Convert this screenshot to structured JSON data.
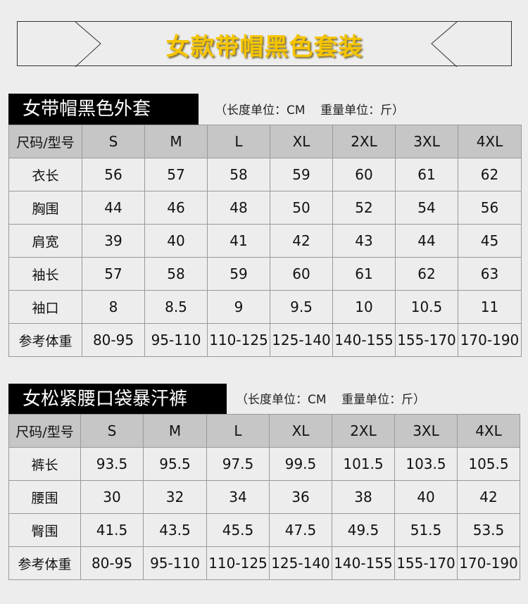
{
  "banner": {
    "title": "女款带帽黑色套装"
  },
  "sections": [
    {
      "title": "女带帽黑色外套",
      "units": "（长度单位：CM    重量单位：斤）",
      "header": [
        "尺码/型号",
        "S",
        "M",
        "L",
        "XL",
        "2XL",
        "3XL",
        "4XL"
      ],
      "rows": [
        [
          "衣长",
          "56",
          "57",
          "58",
          "59",
          "60",
          "61",
          "62"
        ],
        [
          "胸围",
          "44",
          "46",
          "48",
          "50",
          "52",
          "54",
          "56"
        ],
        [
          "肩宽",
          "39",
          "40",
          "41",
          "42",
          "43",
          "44",
          "45"
        ],
        [
          "袖长",
          "57",
          "58",
          "59",
          "60",
          "61",
          "62",
          "63"
        ],
        [
          "袖口",
          "8",
          "8.5",
          "9",
          "9.5",
          "10",
          "10.5",
          "11"
        ],
        [
          "参考体重",
          "80-95",
          "95-110",
          "110-125",
          "125-140",
          "140-155",
          "155-170",
          "170-190"
        ]
      ]
    },
    {
      "title": "女松紧腰口袋暴汗裤",
      "units": "（长度单位：CM    重量单位：斤）",
      "header": [
        "尺码/型号",
        "S",
        "M",
        "L",
        "XL",
        "2XL",
        "3XL",
        "4XL"
      ],
      "rows": [
        [
          "裤长",
          "93.5",
          "95.5",
          "97.5",
          "99.5",
          "101.5",
          "103.5",
          "105.5"
        ],
        [
          "腰围",
          "30",
          "32",
          "34",
          "36",
          "38",
          "40",
          "42"
        ],
        [
          "臀围",
          "41.5",
          "43.5",
          "45.5",
          "47.5",
          "49.5",
          "51.5",
          "53.5"
        ],
        [
          "参考体重",
          "80-95",
          "95-110",
          "110-125",
          "125-140",
          "140-155",
          "155-170",
          "170-190"
        ]
      ]
    }
  ]
}
